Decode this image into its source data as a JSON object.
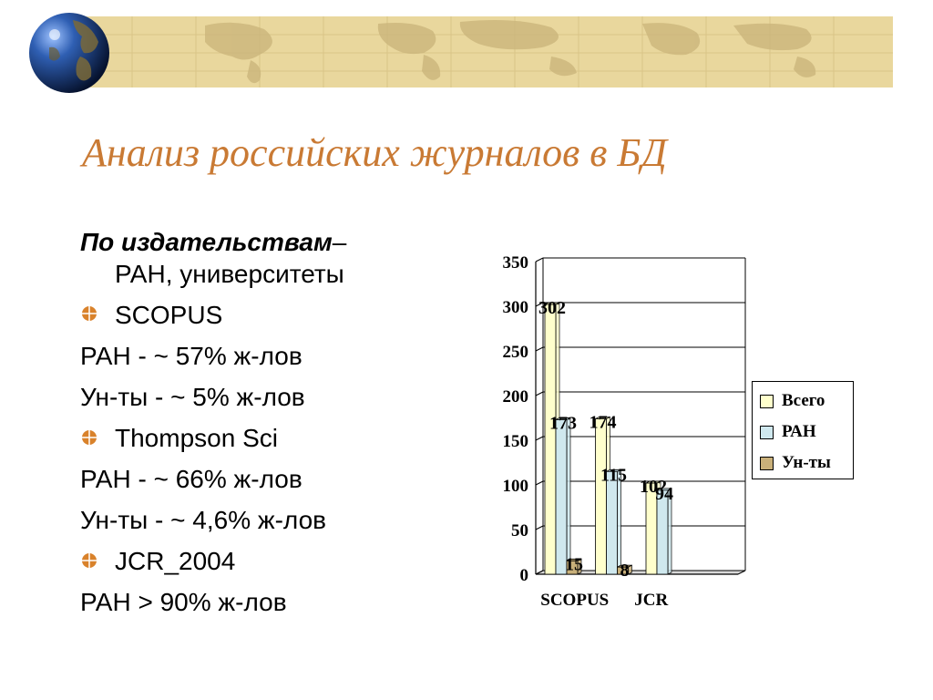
{
  "slide": {
    "title": "Анализ российских журналов в БД"
  },
  "body": {
    "line1_bold": "По издательствам",
    "line1_dash": "–",
    "line2": "РАН, университеты",
    "scopus_label": "SCOPUS",
    "scopus_ran": "РАН -   ~ 57% ж-лов",
    "scopus_un": "Ун-ты - ~ 5% ж-лов",
    "thompson_label": "Thompson Sci",
    "thompson_ran": "РАН - ~ 66% ж-лов",
    "thompson_un": "Ун-ты - ~ 4,6% ж-лов",
    "jcr_label": "JCR_2004",
    "jcr_ran": "РАН > 90% ж-лов"
  },
  "chart_data": {
    "type": "bar",
    "categories": [
      "SCOPUS",
      "",
      "JCR",
      ""
    ],
    "x_tick_labels": [
      "SCOPUS",
      "JCR"
    ],
    "series": [
      {
        "name": "Всего",
        "values": [
          302,
          174,
          102,
          null
        ],
        "color": "#ffffcc"
      },
      {
        "name": "РАН",
        "values": [
          173,
          115,
          94,
          null
        ],
        "color": "#cfe8ee"
      },
      {
        "name": "Ун-ты",
        "values": [
          15,
          8,
          null,
          null
        ],
        "color": "#c9b07a"
      }
    ],
    "ylim": [
      0,
      350
    ],
    "yticks": [
      0,
      50,
      100,
      150,
      200,
      250,
      300,
      350
    ],
    "grid": true,
    "legend_position": "right"
  },
  "colors": {
    "title": "#c97a34",
    "bullet": "#d9822b",
    "header_band": "#e9d79d"
  }
}
